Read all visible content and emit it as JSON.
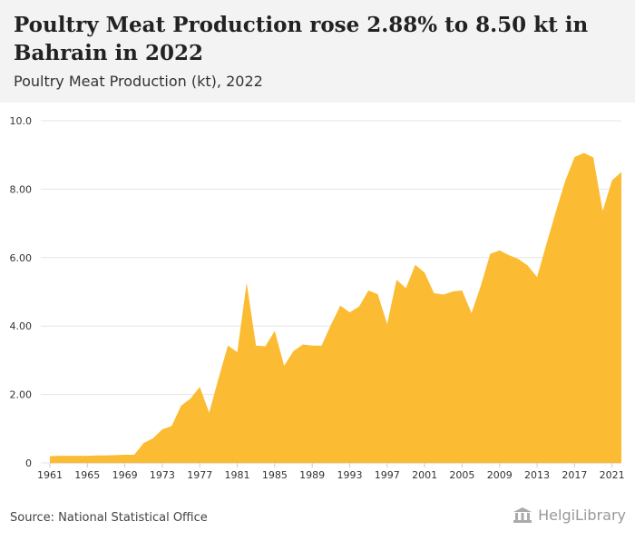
{
  "header": {
    "title": "Poultry Meat Production rose 2.88% to 8.50 kt in Bahrain in 2022",
    "subtitle": "Poultry Meat Production (kt), 2022"
  },
  "footer": {
    "source": "Source: National Statistical Office",
    "brand": "HelgiLibrary"
  },
  "colors": {
    "area": "#fbbc33",
    "grid": "#e5e5e5",
    "header_bg": "#f3f3f3",
    "text": "#222222"
  },
  "chart_data": {
    "type": "area",
    "title": "Poultry Meat Production (kt), 2022",
    "xlabel": "",
    "ylabel": "",
    "ylim": [
      0,
      10
    ],
    "xlim": [
      1961,
      2022
    ],
    "grid": true,
    "yticks": [
      "0",
      "2.00",
      "4.00",
      "6.00",
      "8.00",
      "10.0"
    ],
    "xticks": [
      "1961",
      "1965",
      "1969",
      "1973",
      "1977",
      "1981",
      "1985",
      "1989",
      "1993",
      "1997",
      "2001",
      "2005",
      "2009",
      "2013",
      "2017",
      "2021"
    ],
    "x": [
      1961,
      1962,
      1963,
      1964,
      1965,
      1966,
      1967,
      1968,
      1969,
      1970,
      1971,
      1972,
      1973,
      1974,
      1975,
      1976,
      1977,
      1978,
      1979,
      1980,
      1981,
      1982,
      1983,
      1984,
      1985,
      1986,
      1987,
      1988,
      1989,
      1990,
      1991,
      1992,
      1993,
      1994,
      1995,
      1996,
      1997,
      1998,
      1999,
      2000,
      2001,
      2002,
      2003,
      2004,
      2005,
      2006,
      2007,
      2008,
      2009,
      2010,
      2011,
      2012,
      2013,
      2014,
      2015,
      2016,
      2017,
      2018,
      2019,
      2020,
      2021,
      2022
    ],
    "series": [
      {
        "values": [
          0.2,
          0.21,
          0.21,
          0.21,
          0.21,
          0.22,
          0.22,
          0.23,
          0.24,
          0.24,
          0.58,
          0.72,
          0.98,
          1.08,
          1.67,
          1.88,
          2.22,
          1.47,
          2.47,
          3.43,
          3.24,
          5.27,
          3.43,
          3.41,
          3.86,
          2.84,
          3.27,
          3.46,
          3.43,
          3.43,
          4.04,
          4.6,
          4.4,
          4.57,
          5.04,
          4.93,
          4.06,
          5.35,
          5.11,
          5.79,
          5.56,
          4.96,
          4.92,
          5.01,
          5.04,
          4.38,
          5.18,
          6.11,
          6.21,
          6.07,
          5.96,
          5.77,
          5.43,
          6.4,
          7.34,
          8.24,
          8.94,
          9.06,
          8.93,
          7.36,
          8.26,
          8.5
        ]
      }
    ]
  }
}
